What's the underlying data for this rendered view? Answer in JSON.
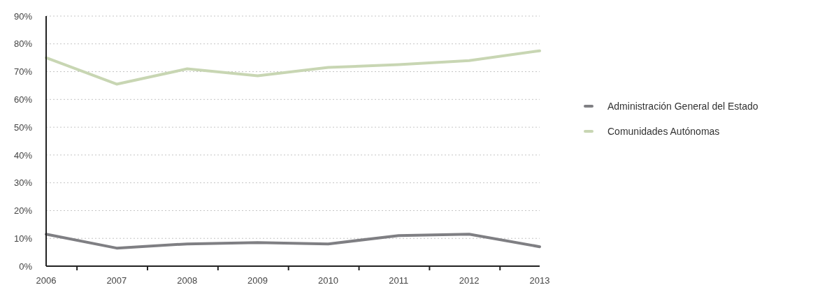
{
  "chart_data": {
    "type": "line",
    "categories": [
      "2006",
      "2007",
      "2008",
      "2009",
      "2010",
      "2011",
      "2012",
      "2013"
    ],
    "series": [
      {
        "name": "Administración General del Estado",
        "color": "#7f7f83",
        "values": [
          11.5,
          6.5,
          8,
          8.5,
          8,
          11,
          11.5,
          7
        ]
      },
      {
        "name": "Comunidades Autónomas",
        "color": "#c8d6b3",
        "values": [
          75,
          65.5,
          71,
          68.5,
          71.5,
          72.5,
          74,
          77.5
        ]
      }
    ],
    "ylim": [
      0,
      90
    ],
    "yticks": [
      {
        "value": 0,
        "label": "0%"
      },
      {
        "value": 10,
        "label": "10%"
      },
      {
        "value": 20,
        "label": "20%"
      },
      {
        "value": 30,
        "label": "30%"
      },
      {
        "value": 40,
        "label": "40%"
      },
      {
        "value": 50,
        "label": "50%"
      },
      {
        "value": 60,
        "label": "60%"
      },
      {
        "value": 70,
        "label": "70%"
      },
      {
        "value": 80,
        "label": "80%"
      },
      {
        "value": 90,
        "label": "90%"
      }
    ],
    "grid": "y",
    "legend": "right"
  }
}
